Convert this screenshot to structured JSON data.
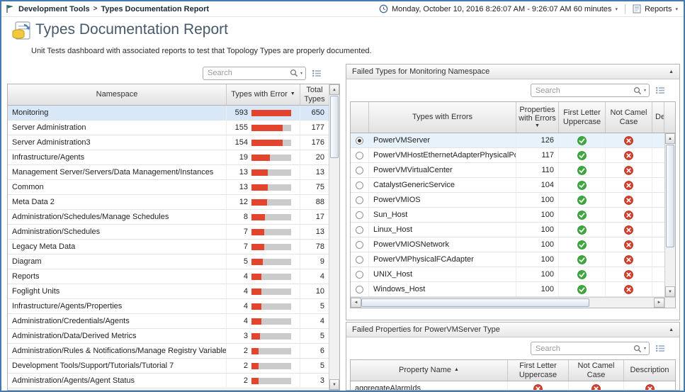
{
  "icons": {
    "caret_down": "▾",
    "sort_down": "▼",
    "sort_up": "▲",
    "collapse_up": "▲",
    "breadcrumb_sep": ">",
    "scroll_up": "▲",
    "scroll_down": "▼",
    "scroll_left": "◄",
    "scroll_right": "►"
  },
  "breadcrumb": {
    "items": [
      "Development Tools",
      "Types Documentation Report"
    ]
  },
  "topbar": {
    "time_label": "Monday, October 10, 2016 8:26:07 AM - 9:26:07 AM 60 minutes",
    "reports_label": "Reports"
  },
  "header": {
    "title": "Types Documentation Report",
    "subtitle": "Unit Tests dashboard with associated reports to test that Topology Types are properly documented."
  },
  "namespace_table": {
    "search_placeholder": "Search",
    "columns": [
      "Namespace",
      "Types with Error",
      "Total Types"
    ],
    "sorted_column": "Types with Error",
    "rows": [
      {
        "namespace": "Monitoring",
        "errors": 593,
        "total": 650,
        "selected": true
      },
      {
        "namespace": "Server Administration",
        "errors": 155,
        "total": 177
      },
      {
        "namespace": "Server Administration3",
        "errors": 154,
        "total": 176
      },
      {
        "namespace": "Infrastructure/Agents",
        "errors": 19,
        "total": 20
      },
      {
        "namespace": "Management Server/Servers/Data Management/Instances",
        "errors": 13,
        "total": 13
      },
      {
        "namespace": "Common",
        "errors": 13,
        "total": 75
      },
      {
        "namespace": "Meta Data 2",
        "errors": 12,
        "total": 88
      },
      {
        "namespace": "Administration/Schedules/Manage Schedules",
        "errors": 8,
        "total": 17
      },
      {
        "namespace": "Administration/Schedules",
        "errors": 7,
        "total": 13
      },
      {
        "namespace": "Legacy Meta Data",
        "errors": 7,
        "total": 78
      },
      {
        "namespace": "Diagram",
        "errors": 5,
        "total": 9
      },
      {
        "namespace": "Reports",
        "errors": 4,
        "total": 4
      },
      {
        "namespace": "Foglight Units",
        "errors": 4,
        "total": 10
      },
      {
        "namespace": "Infrastructure/Agents/Properties",
        "errors": 4,
        "total": 5
      },
      {
        "namespace": "Administration/Credentials/Agents",
        "errors": 4,
        "total": 4
      },
      {
        "namespace": "Administration/Data/Derived Metrics",
        "errors": 3,
        "total": 5
      },
      {
        "namespace": "Administration/Rules & Notifications/Manage Registry Variables",
        "errors": 2,
        "total": 6
      },
      {
        "namespace": "Development Tools/Support/Tutorials/Tutorial 7",
        "errors": 2,
        "total": 5
      },
      {
        "namespace": "Administration/Agents/Agent Status",
        "errors": 2,
        "total": 3
      }
    ]
  },
  "failed_types": {
    "title": "Failed Types for Monitoring Namespace",
    "search_placeholder": "Search",
    "columns": [
      "Types with Errors",
      "Properties with Errors",
      "First Letter Uppercase",
      "Not Camel Case",
      "Description"
    ],
    "sorted_column": "Properties with Errors",
    "rows": [
      {
        "name": "PowerVMServer",
        "errors": 126,
        "first_letter_uppercase": "pass",
        "not_camel_case": "fail",
        "selected": true
      },
      {
        "name": "PowerVMHostEthernetAdapterPhysicalPort",
        "errors": 117,
        "first_letter_uppercase": "pass",
        "not_camel_case": "fail"
      },
      {
        "name": "PowerVMVirtualCenter",
        "errors": 110,
        "first_letter_uppercase": "pass",
        "not_camel_case": "fail"
      },
      {
        "name": "CatalystGenericService",
        "errors": 104,
        "first_letter_uppercase": "pass",
        "not_camel_case": "fail"
      },
      {
        "name": "PowerVMIOS",
        "errors": 100,
        "first_letter_uppercase": "pass",
        "not_camel_case": "fail"
      },
      {
        "name": "Sun_Host",
        "errors": 100,
        "first_letter_uppercase": "pass",
        "not_camel_case": "fail"
      },
      {
        "name": "Linux_Host",
        "errors": 100,
        "first_letter_uppercase": "pass",
        "not_camel_case": "fail"
      },
      {
        "name": "PowerVMIOSNetwork",
        "errors": 100,
        "first_letter_uppercase": "pass",
        "not_camel_case": "fail"
      },
      {
        "name": "PowerVMPhysicalFCAdapter",
        "errors": 100,
        "first_letter_uppercase": "pass",
        "not_camel_case": "fail"
      },
      {
        "name": "UNIX_Host",
        "errors": 100,
        "first_letter_uppercase": "pass",
        "not_camel_case": "fail"
      },
      {
        "name": "Windows_Host",
        "errors": 100,
        "first_letter_uppercase": "pass",
        "not_camel_case": "fail"
      }
    ]
  },
  "failed_properties": {
    "title": "Failed Properties for PowerVMServer Type",
    "search_placeholder": "Search",
    "columns": [
      "Property Name",
      "First Letter Uppercase",
      "Not Camel Case",
      "Description"
    ],
    "sorted_column": "Property Name",
    "rows": [
      {
        "name": "aggregateAlarmIds",
        "first_letter_uppercase": "fail",
        "not_camel_case": "fail",
        "description": "fail"
      }
    ]
  }
}
